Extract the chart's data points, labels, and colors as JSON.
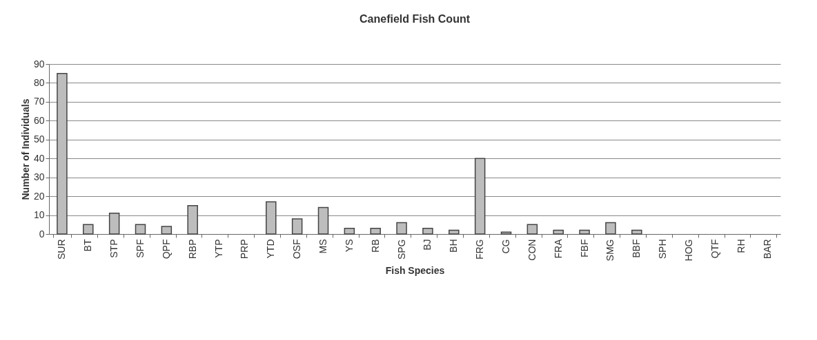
{
  "chart_data": {
    "type": "bar",
    "title": "Canefield Fish Count",
    "xlabel": "Fish Species",
    "ylabel": "Number of Individuals",
    "categories": [
      "SUR",
      "BT",
      "STP",
      "SPF",
      "QPF",
      "RBP",
      "YTP",
      "PRP",
      "YTD",
      "OSF",
      "MS",
      "YS",
      "RB",
      "SPG",
      "BJ",
      "BH",
      "FRG",
      "CG",
      "CON",
      "FRA",
      "FBF",
      "SMG",
      "BBF",
      "SPH",
      "HOG",
      "QTF",
      "RH",
      "BAR"
    ],
    "values": [
      85,
      5,
      11,
      5,
      4,
      15,
      0,
      0,
      17,
      8,
      14,
      3,
      3,
      6,
      3,
      2,
      40,
      1,
      5,
      2,
      2,
      6,
      2,
      0,
      0,
      0,
      0,
      0
    ],
    "color": "#bdbdbd",
    "ylim": [
      0,
      90
    ],
    "yticks": [
      0,
      10,
      20,
      30,
      40,
      50,
      60,
      70,
      80,
      90
    ],
    "grid": "y"
  }
}
